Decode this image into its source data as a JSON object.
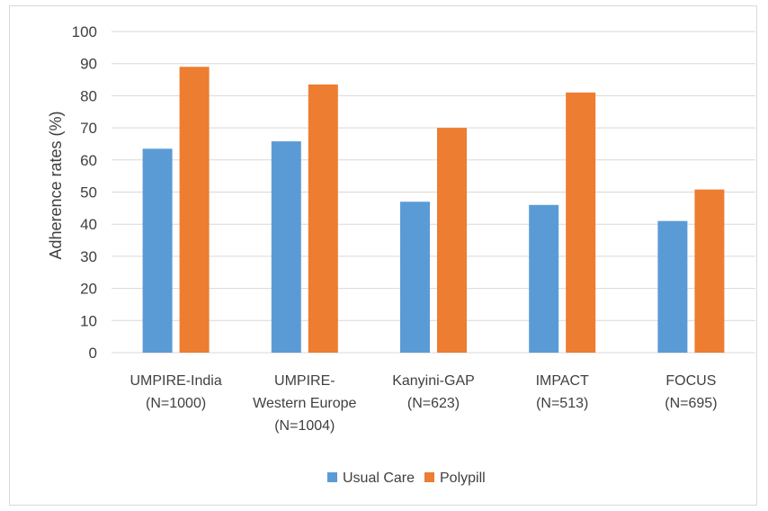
{
  "chart_data": {
    "type": "bar",
    "ylabel": "Adherence rates (%)",
    "xlabel": "",
    "ylim": [
      0,
      100
    ],
    "yticks": [
      0,
      10,
      20,
      30,
      40,
      50,
      60,
      70,
      80,
      90,
      100
    ],
    "grid": true,
    "legend_position": "bottom",
    "categories": [
      [
        "UMPIRE-India",
        "(N=1000)"
      ],
      [
        "UMPIRE-",
        "Western Europe",
        "(N=1004)"
      ],
      [
        "Kanyini-GAP",
        "(N=623)"
      ],
      [
        "IMPACT",
        "(N=513)"
      ],
      [
        "FOCUS",
        "(N=695)"
      ]
    ],
    "series": [
      {
        "name": "Usual Care",
        "color": "#5b9bd5",
        "values": [
          63.5,
          65.8,
          47,
          46,
          41
        ]
      },
      {
        "name": "Polypill",
        "color": "#ed7d31",
        "values": [
          89,
          83.5,
          70,
          81,
          50.8
        ]
      }
    ]
  }
}
